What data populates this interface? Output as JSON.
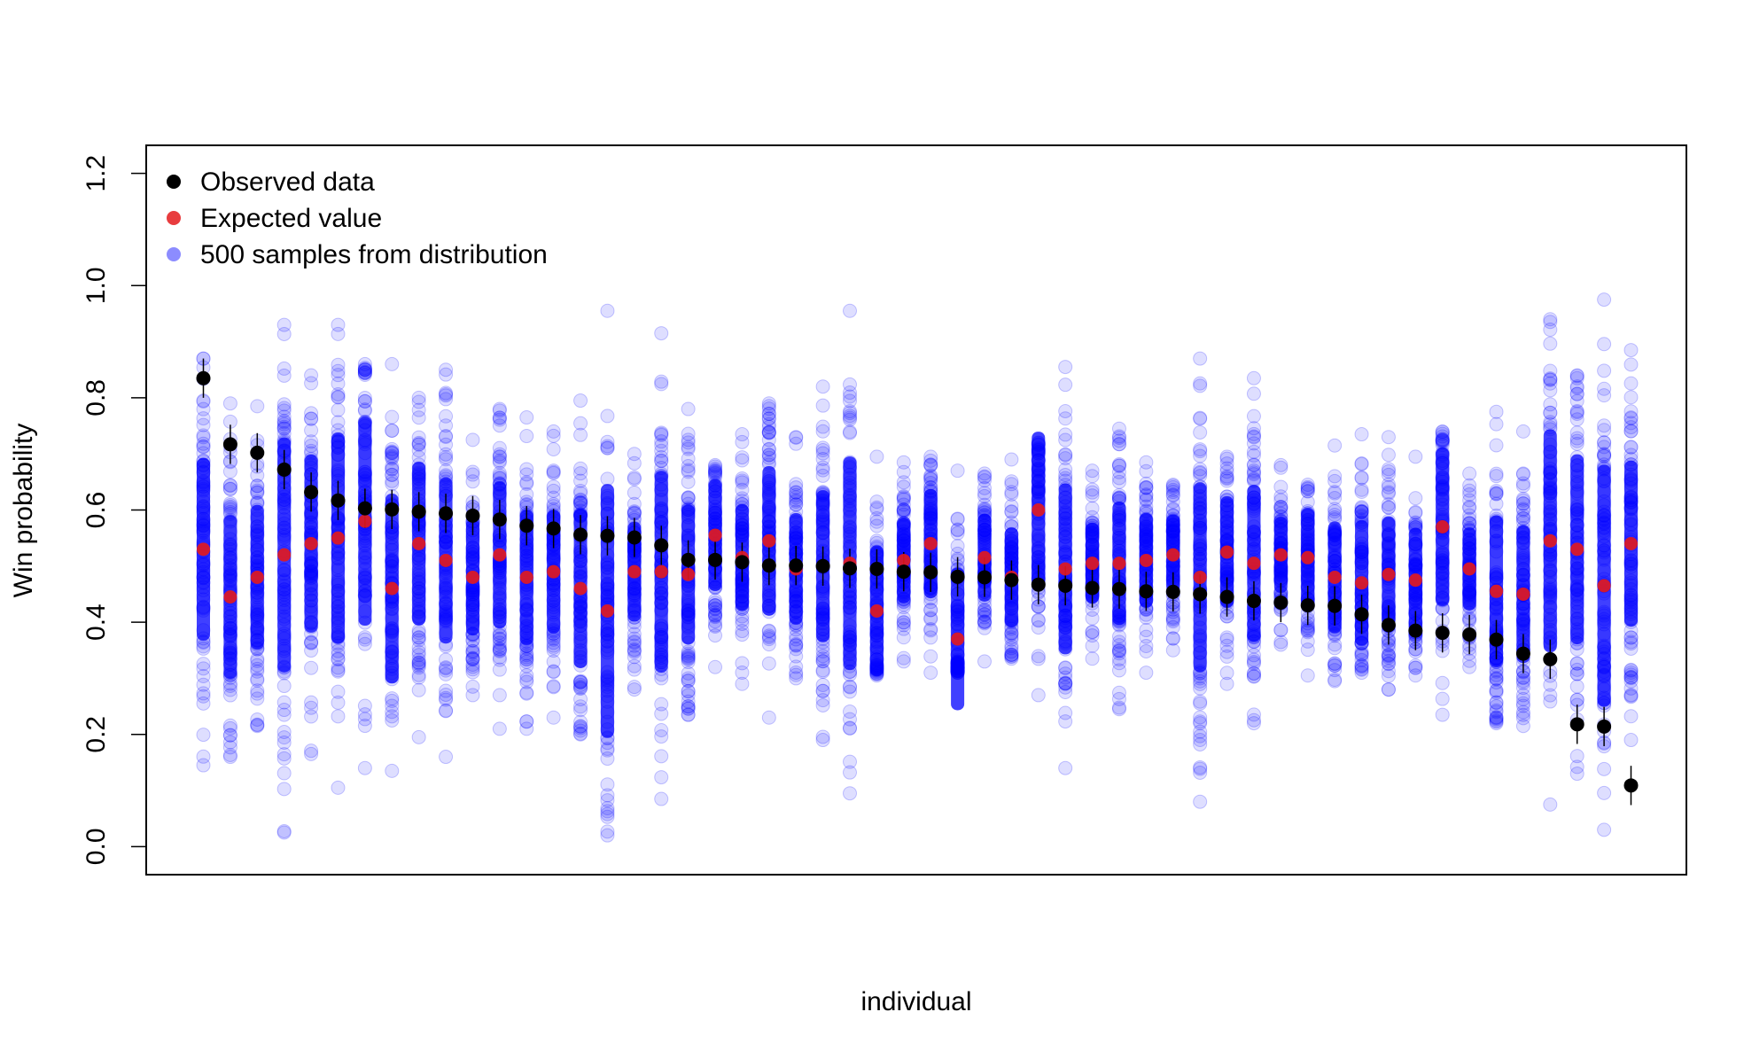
{
  "chart_data": {
    "type": "scatter",
    "title": "",
    "xlabel": "individual",
    "ylabel": "Win probability",
    "ylim": [
      -0.05,
      1.25
    ],
    "yticks": [
      {
        "value": 0.0,
        "label": "0.0"
      },
      {
        "value": 0.2,
        "label": "0.2"
      },
      {
        "value": 0.4,
        "label": "0.4"
      },
      {
        "value": 0.6,
        "label": "0.6"
      },
      {
        "value": 0.8,
        "label": "0.8"
      },
      {
        "value": 1.0,
        "label": "1.0"
      },
      {
        "value": 1.2,
        "label": "1.2"
      }
    ],
    "grid": false,
    "legend_position": "top-left",
    "legend": [
      {
        "label": "Observed data",
        "color": "#000000"
      },
      {
        "label": "Expected value",
        "color": "#e41a1c"
      },
      {
        "label": "500 samples from distribution",
        "color": "#0000ff"
      }
    ],
    "sample_count": 500,
    "colors": {
      "observed": "#000000",
      "expected": "#e41a1c",
      "samples": "#0000ff"
    },
    "individuals": [
      {
        "observed": 0.835,
        "expected": 0.53,
        "sample_min": 0.145,
        "sample_max": 0.87
      },
      {
        "observed": 0.717,
        "expected": 0.445,
        "sample_min": 0.16,
        "sample_max": 0.79
      },
      {
        "observed": 0.702,
        "expected": 0.48,
        "sample_min": 0.215,
        "sample_max": 0.785
      },
      {
        "observed": 0.672,
        "expected": 0.52,
        "sample_min": 0.025,
        "sample_max": 0.93
      },
      {
        "observed": 0.632,
        "expected": 0.54,
        "sample_min": 0.165,
        "sample_max": 0.84
      },
      {
        "observed": 0.617,
        "expected": 0.55,
        "sample_min": 0.105,
        "sample_max": 0.93
      },
      {
        "observed": 0.603,
        "expected": 0.58,
        "sample_min": 0.14,
        "sample_max": 0.86
      },
      {
        "observed": 0.601,
        "expected": 0.46,
        "sample_min": 0.135,
        "sample_max": 0.86
      },
      {
        "observed": 0.597,
        "expected": 0.54,
        "sample_min": 0.195,
        "sample_max": 0.8
      },
      {
        "observed": 0.594,
        "expected": 0.51,
        "sample_min": 0.16,
        "sample_max": 0.85
      },
      {
        "observed": 0.59,
        "expected": 0.48,
        "sample_min": 0.27,
        "sample_max": 0.725
      },
      {
        "observed": 0.583,
        "expected": 0.52,
        "sample_min": 0.21,
        "sample_max": 0.78
      },
      {
        "observed": 0.572,
        "expected": 0.48,
        "sample_min": 0.21,
        "sample_max": 0.765
      },
      {
        "observed": 0.567,
        "expected": 0.49,
        "sample_min": 0.23,
        "sample_max": 0.74
      },
      {
        "observed": 0.556,
        "expected": 0.46,
        "sample_min": 0.2,
        "sample_max": 0.795
      },
      {
        "observed": 0.554,
        "expected": 0.42,
        "sample_min": 0.02,
        "sample_max": 0.955
      },
      {
        "observed": 0.551,
        "expected": 0.49,
        "sample_min": 0.28,
        "sample_max": 0.7
      },
      {
        "observed": 0.537,
        "expected": 0.49,
        "sample_min": 0.085,
        "sample_max": 0.915
      },
      {
        "observed": 0.511,
        "expected": 0.485,
        "sample_min": 0.235,
        "sample_max": 0.78
      },
      {
        "observed": 0.511,
        "expected": 0.555,
        "sample_min": 0.32,
        "sample_max": 0.68
      },
      {
        "observed": 0.507,
        "expected": 0.515,
        "sample_min": 0.29,
        "sample_max": 0.735
      },
      {
        "observed": 0.501,
        "expected": 0.545,
        "sample_min": 0.23,
        "sample_max": 0.79
      },
      {
        "observed": 0.501,
        "expected": 0.495,
        "sample_min": 0.3,
        "sample_max": 0.73
      },
      {
        "observed": 0.5,
        "expected": 0.5,
        "sample_min": 0.19,
        "sample_max": 0.82
      },
      {
        "observed": 0.496,
        "expected": 0.505,
        "sample_min": 0.095,
        "sample_max": 0.955
      },
      {
        "observed": 0.495,
        "expected": 0.42,
        "sample_min": 0.305,
        "sample_max": 0.695
      },
      {
        "observed": 0.49,
        "expected": 0.51,
        "sample_min": 0.33,
        "sample_max": 0.685
      },
      {
        "observed": 0.489,
        "expected": 0.54,
        "sample_min": 0.31,
        "sample_max": 0.695
      },
      {
        "observed": 0.481,
        "expected": 0.37,
        "sample_min": 0.31,
        "sample_max": 0.67
      },
      {
        "observed": 0.48,
        "expected": 0.515,
        "sample_min": 0.33,
        "sample_max": 0.665
      },
      {
        "observed": 0.475,
        "expected": 0.48,
        "sample_min": 0.335,
        "sample_max": 0.69
      },
      {
        "observed": 0.467,
        "expected": 0.6,
        "sample_min": 0.27,
        "sample_max": 0.72
      },
      {
        "observed": 0.465,
        "expected": 0.495,
        "sample_min": 0.14,
        "sample_max": 0.855
      },
      {
        "observed": 0.461,
        "expected": 0.505,
        "sample_min": 0.335,
        "sample_max": 0.67
      },
      {
        "observed": 0.459,
        "expected": 0.505,
        "sample_min": 0.245,
        "sample_max": 0.745
      },
      {
        "observed": 0.455,
        "expected": 0.51,
        "sample_min": 0.31,
        "sample_max": 0.685
      },
      {
        "observed": 0.454,
        "expected": 0.52,
        "sample_min": 0.35,
        "sample_max": 0.645
      },
      {
        "observed": 0.45,
        "expected": 0.48,
        "sample_min": 0.08,
        "sample_max": 0.87
      },
      {
        "observed": 0.445,
        "expected": 0.525,
        "sample_min": 0.29,
        "sample_max": 0.695
      },
      {
        "observed": 0.438,
        "expected": 0.505,
        "sample_min": 0.22,
        "sample_max": 0.835
      },
      {
        "observed": 0.435,
        "expected": 0.52,
        "sample_min": 0.36,
        "sample_max": 0.68
      },
      {
        "observed": 0.43,
        "expected": 0.515,
        "sample_min": 0.305,
        "sample_max": 0.645
      },
      {
        "observed": 0.429,
        "expected": 0.48,
        "sample_min": 0.295,
        "sample_max": 0.715
      },
      {
        "observed": 0.414,
        "expected": 0.47,
        "sample_min": 0.31,
        "sample_max": 0.735
      },
      {
        "observed": 0.395,
        "expected": 0.485,
        "sample_min": 0.28,
        "sample_max": 0.73
      },
      {
        "observed": 0.385,
        "expected": 0.475,
        "sample_min": 0.305,
        "sample_max": 0.695
      },
      {
        "observed": 0.381,
        "expected": 0.57,
        "sample_min": 0.235,
        "sample_max": 0.74
      },
      {
        "observed": 0.378,
        "expected": 0.495,
        "sample_min": 0.32,
        "sample_max": 0.665
      },
      {
        "observed": 0.369,
        "expected": 0.455,
        "sample_min": 0.22,
        "sample_max": 0.775
      },
      {
        "observed": 0.344,
        "expected": 0.45,
        "sample_min": 0.215,
        "sample_max": 0.74
      },
      {
        "observed": 0.334,
        "expected": 0.545,
        "sample_min": 0.075,
        "sample_max": 0.94
      },
      {
        "observed": 0.218,
        "expected": 0.53,
        "sample_min": 0.13,
        "sample_max": 0.84
      },
      {
        "observed": 0.214,
        "expected": 0.465,
        "sample_min": 0.03,
        "sample_max": 0.975
      },
      {
        "observed": 0.109,
        "expected": 0.54,
        "sample_min": 0.19,
        "sample_max": 0.885
      }
    ]
  }
}
